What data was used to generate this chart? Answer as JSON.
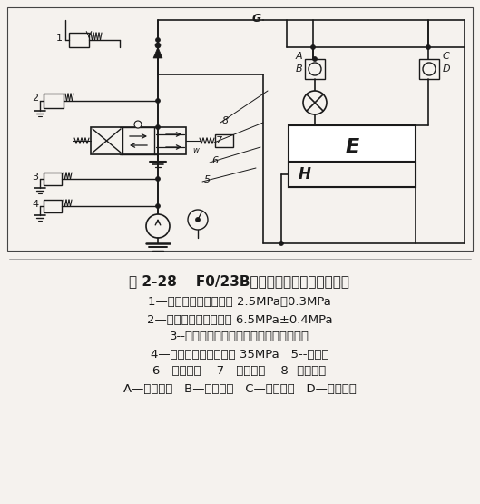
{
  "title_line1": "图 2-28    F0/23B塔式起重机液压系统原理图",
  "desc_lines": [
    "1—安全阀，调定压力为 2.5MPa＋0.3MPa",
    "2—安全阀，调定压力为 6.5MPa±0.4MPa",
    "3--安全阀，调节手柄装在液压泵站台面上",
    "4—安全阀，调定压力为 35MPa   5--换向阀",
    "6—手动活门    7—顶升油缸    8--液压泵站",
    "A—液控活塞   B—单向活门   C—液控活塞   D—单向活门"
  ],
  "bg_color": "#f5f2ee",
  "line_color": "#1a1a1a",
  "text_color": "#1a1a1a",
  "title_fontsize": 11,
  "desc_fontsize": 9.5,
  "last_line_fontsize": 9.5,
  "fig_width": 5.29,
  "fig_height": 5.55
}
